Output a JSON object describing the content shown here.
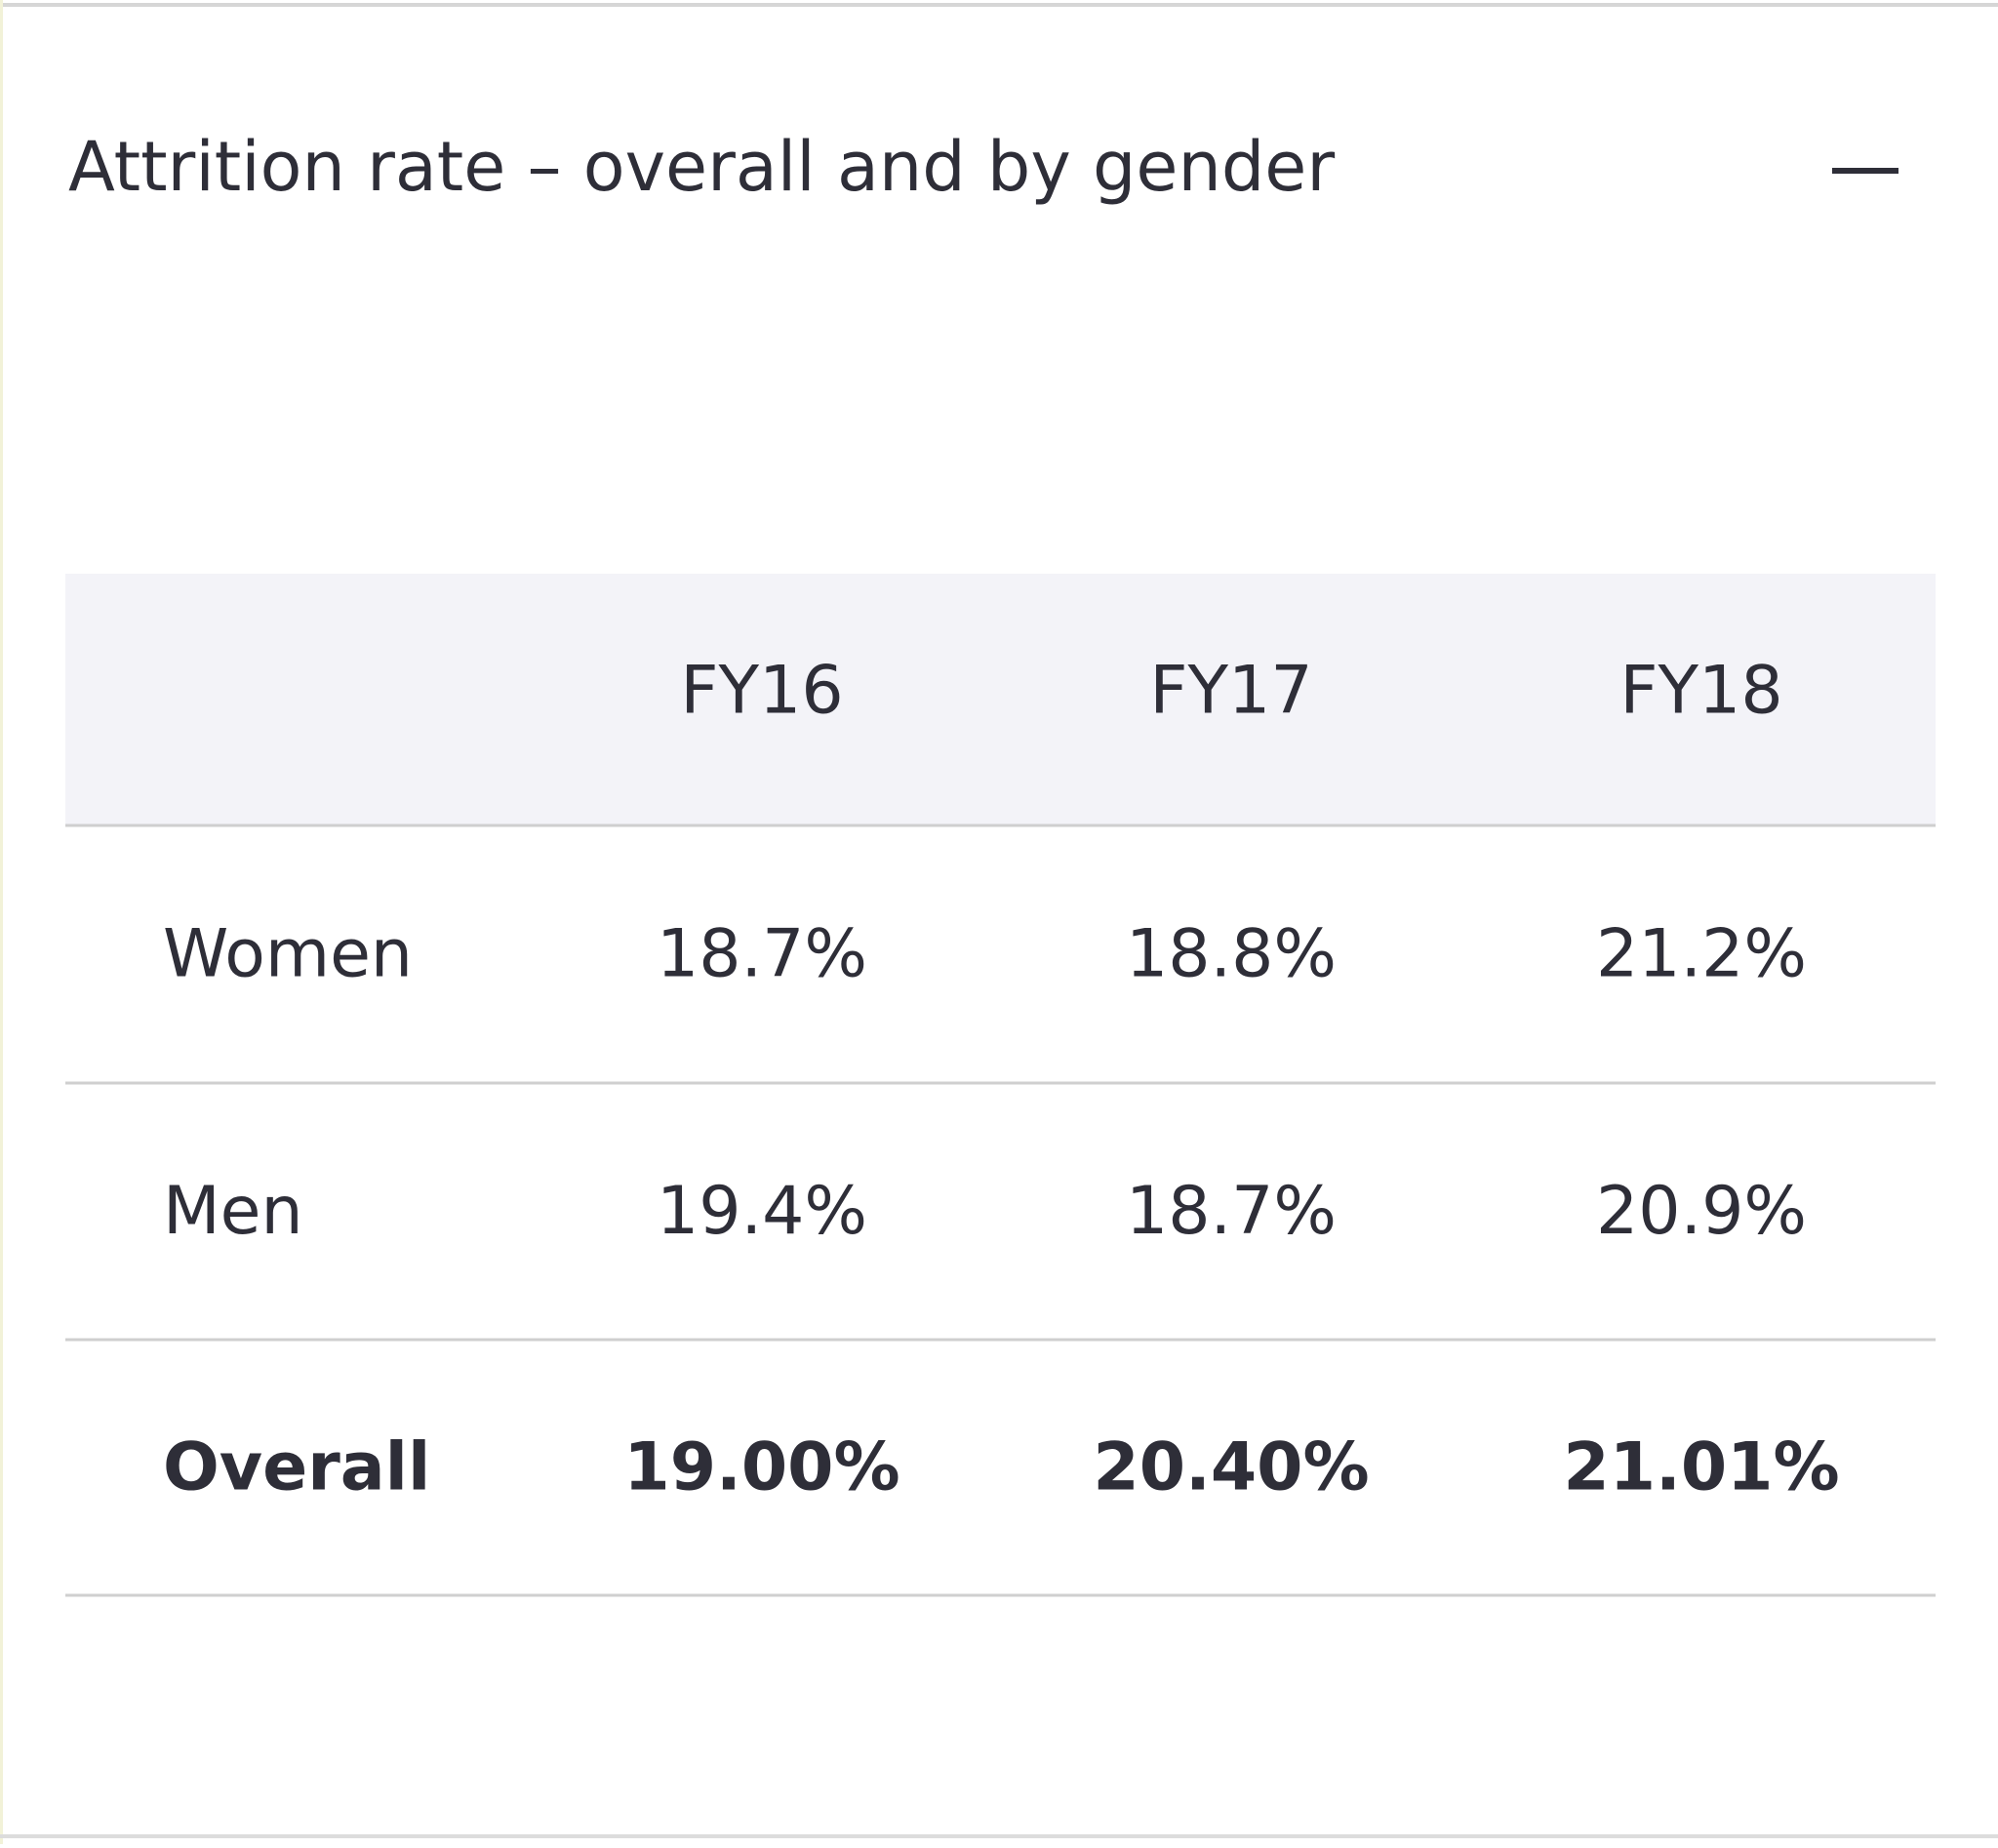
{
  "header": {
    "title": "Attrition rate – overall and by gender"
  },
  "table": {
    "columns": [
      "FY16",
      "FY17",
      "FY18"
    ],
    "rows": [
      {
        "label": "Women",
        "cells": [
          "18.7%",
          "18.8%",
          "21.2%"
        ]
      },
      {
        "label": "Men",
        "cells": [
          "19.4%",
          "18.7%",
          "20.9%"
        ]
      },
      {
        "label": "Overall",
        "cells": [
          "19.00%",
          "20.40%",
          "21.01%"
        ]
      }
    ]
  }
}
